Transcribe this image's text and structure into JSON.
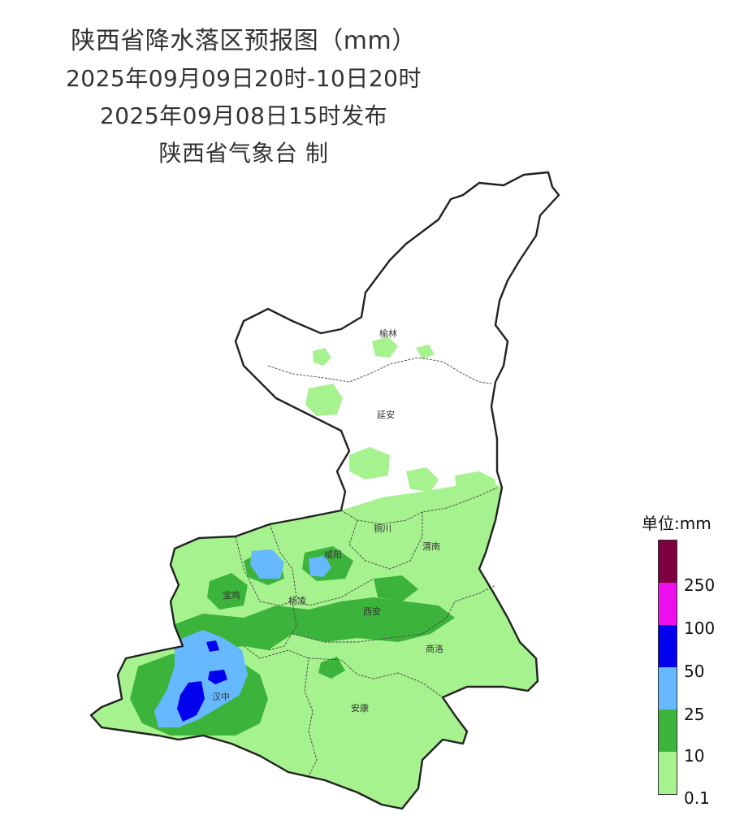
{
  "header": {
    "title": "陕西省降水落区预报图（mm）",
    "period": "2025年09月09日20时-10日20时",
    "issued": "2025年09月08日15时发布",
    "producer": "陕西省气象台 制"
  },
  "cities": [
    "榆林",
    "延安",
    "铜川",
    "咸阳",
    "渭南",
    "宝鸡",
    "杨凌",
    "西安",
    "汉中",
    "商洛",
    "安康"
  ],
  "legend": {
    "title": "单位:mm",
    "levels": [
      {
        "label": "",
        "color": "#7d0040"
      },
      {
        "label": "250",
        "color": "#ee0fee"
      },
      {
        "label": "100",
        "color": "#0000ee"
      },
      {
        "label": "50",
        "color": "#66b8ff"
      },
      {
        "label": "25",
        "color": "#3cb43c"
      },
      {
        "label": "10",
        "color": "#a6f28e"
      },
      {
        "label": "0.1",
        "color": ""
      }
    ]
  },
  "colors": {
    "light_green_0_1_to_10": "#a6f28e",
    "green_10_to_25": "#3cb43c",
    "light_blue_25_to_50": "#66b8ff",
    "blue_50_to_100": "#0000ee",
    "boundary": "#222222"
  }
}
